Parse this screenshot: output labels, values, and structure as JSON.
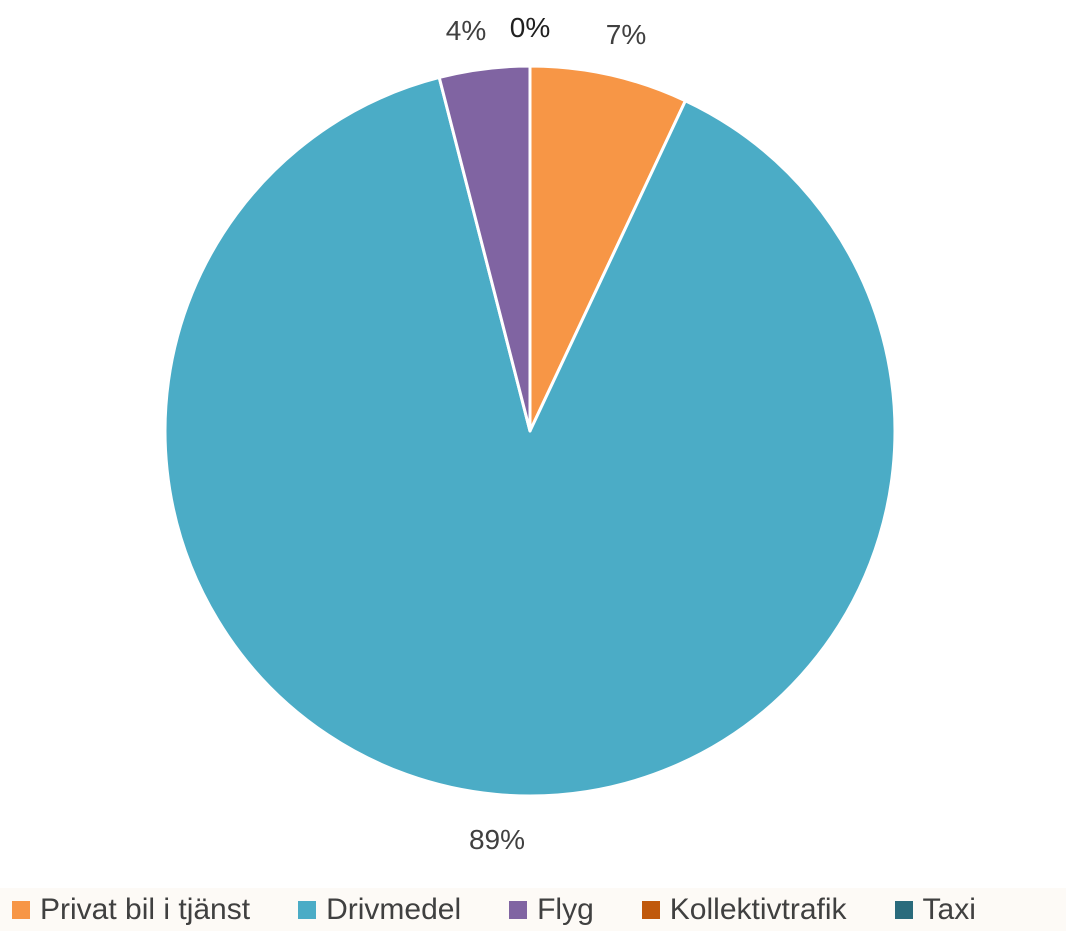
{
  "chart_data": {
    "type": "pie",
    "title": "",
    "categories": [
      "Privat bil i tjänst",
      "Drivmedel",
      "Flyg",
      "Kollektivtrafik",
      "Taxi"
    ],
    "values": [
      7,
      89,
      4,
      0,
      0
    ],
    "data_labels": [
      "7%",
      "89%",
      "4%",
      "0%",
      ""
    ],
    "colors": [
      "#f79646",
      "#4bacc6",
      "#8064a2",
      "#c0580b",
      "#2a6b7c"
    ],
    "legend_position": "bottom",
    "start_angle": "top, clockwise"
  }
}
